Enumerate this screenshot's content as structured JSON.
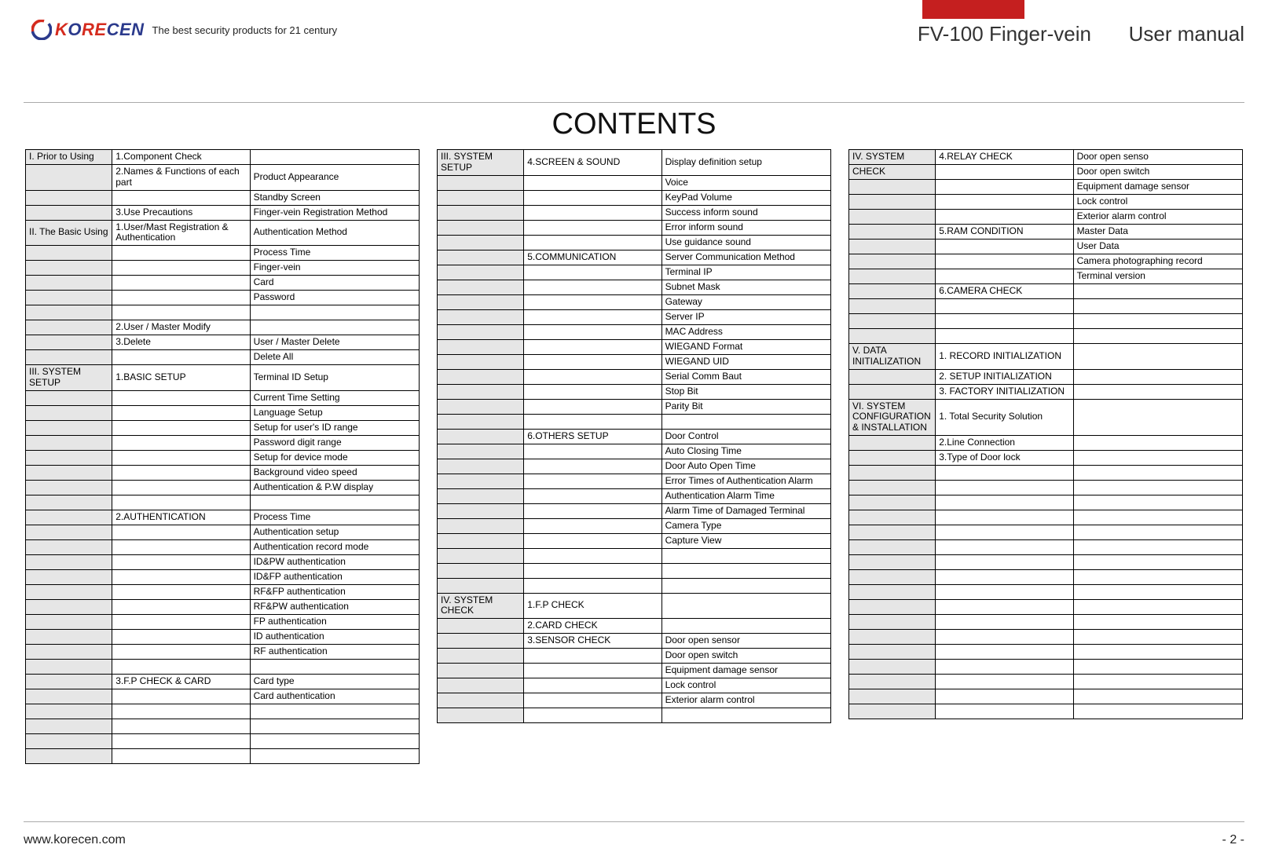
{
  "header": {
    "brand": "KORECEN",
    "tagline": "The best security products for 21 century",
    "product": "FV-100 Finger-vein",
    "doc_type": "User manual"
  },
  "title": "CONTENTS",
  "footer": {
    "url": "www.korecen.com",
    "page": "- 2 -"
  },
  "columns": [
    {
      "rows": [
        {
          "c1": "I. Prior to Using",
          "c1grey": true,
          "c2": "1.Component Check",
          "c3": ""
        },
        {
          "c1": "",
          "c1grey": true,
          "c2": "2.Names & Functions of each part",
          "c3": "Product Appearance"
        },
        {
          "c1": "",
          "c1grey": true,
          "c2": "",
          "c3": "Standby Screen"
        },
        {
          "c1": "",
          "c1grey": true,
          "c2": "3.Use Precautions",
          "c3": "Finger-vein Registration Method"
        },
        {
          "c1": "II. The Basic Using",
          "c1grey": true,
          "c2": "1.User/Mast Registration & Authentication",
          "c3": "Authentication Method"
        },
        {
          "c1": "",
          "c1grey": true,
          "c2": "",
          "c3": "Process Time"
        },
        {
          "c1": "",
          "c1grey": true,
          "c2": "",
          "c3": "Finger-vein"
        },
        {
          "c1": "",
          "c1grey": true,
          "c2": "",
          "c3": "Card"
        },
        {
          "c1": "",
          "c1grey": true,
          "c2": "",
          "c3": "Password"
        },
        {
          "c1": "",
          "c1grey": true,
          "c2": "",
          "c3": ""
        },
        {
          "c1": "",
          "c1grey": true,
          "c2": "2.User / Master Modify",
          "c3": ""
        },
        {
          "c1": "",
          "c1grey": true,
          "c2": "3.Delete",
          "c3": "User / Master Delete"
        },
        {
          "c1": "",
          "c1grey": true,
          "c2": "",
          "c3": "Delete All"
        },
        {
          "c1": "III. SYSTEM SETUP",
          "c1grey": true,
          "c2": "1.BASIC SETUP",
          "c3": "Terminal ID Setup"
        },
        {
          "c1": "",
          "c1grey": true,
          "c2": "",
          "c3": "Current Time Setting"
        },
        {
          "c1": "",
          "c1grey": true,
          "c2": "",
          "c3": "Language Setup"
        },
        {
          "c1": "",
          "c1grey": true,
          "c2": "",
          "c3": "Setup for user's ID range"
        },
        {
          "c1": "",
          "c1grey": true,
          "c2": "",
          "c3": "Password digit range"
        },
        {
          "c1": "",
          "c1grey": true,
          "c2": "",
          "c3": "Setup for device mode"
        },
        {
          "c1": "",
          "c1grey": true,
          "c2": "",
          "c3": "Background video speed"
        },
        {
          "c1": "",
          "c1grey": true,
          "c2": "",
          "c3": "Authentication & P.W display"
        },
        {
          "c1": "",
          "c1grey": true,
          "c2": "",
          "c3": ""
        },
        {
          "c1": "",
          "c1grey": true,
          "c2": "2.AUTHENTICATION",
          "c3": "Process Time"
        },
        {
          "c1": "",
          "c1grey": true,
          "c2": "",
          "c3": "Authentication setup"
        },
        {
          "c1": "",
          "c1grey": true,
          "c2": "",
          "c3": "Authentication record mode"
        },
        {
          "c1": "",
          "c1grey": true,
          "c2": "",
          "c3": "ID&PW authentication"
        },
        {
          "c1": "",
          "c1grey": true,
          "c2": "",
          "c3": "ID&FP authentication"
        },
        {
          "c1": "",
          "c1grey": true,
          "c2": "",
          "c3": "RF&FP authentication"
        },
        {
          "c1": "",
          "c1grey": true,
          "c2": "",
          "c3": "RF&PW authentication"
        },
        {
          "c1": "",
          "c1grey": true,
          "c2": "",
          "c3": "FP authentication"
        },
        {
          "c1": "",
          "c1grey": true,
          "c2": "",
          "c3": "ID authentication"
        },
        {
          "c1": "",
          "c1grey": true,
          "c2": "",
          "c3": "RF authentication"
        },
        {
          "c1": "",
          "c1grey": true,
          "c2": "",
          "c3": ""
        },
        {
          "c1": "",
          "c1grey": true,
          "c2": "3.F.P CHECK & CARD",
          "c3": "Card type"
        },
        {
          "c1": "",
          "c1grey": true,
          "c2": "",
          "c3": "Card authentication"
        },
        {
          "c1": "",
          "c1grey": true,
          "c2": "",
          "c3": ""
        },
        {
          "c1": "",
          "c1grey": true,
          "c2": "",
          "c3": ""
        },
        {
          "c1": "",
          "c1grey": true,
          "c2": "",
          "c3": ""
        },
        {
          "c1": "",
          "c1grey": true,
          "c2": "",
          "c3": ""
        }
      ]
    },
    {
      "rows": [
        {
          "c1": "III. SYSTEM SETUP",
          "c1grey": true,
          "c2": "4.SCREEN & SOUND",
          "c3": "Display definition setup"
        },
        {
          "c1": "",
          "c1grey": true,
          "c2": "",
          "c3": "Voice"
        },
        {
          "c1": "",
          "c1grey": true,
          "c2": "",
          "c3": "KeyPad Volume"
        },
        {
          "c1": "",
          "c1grey": true,
          "c2": "",
          "c3": "Success inform sound"
        },
        {
          "c1": "",
          "c1grey": true,
          "c2": "",
          "c3": "Error inform sound"
        },
        {
          "c1": "",
          "c1grey": true,
          "c2": "",
          "c3": "Use guidance sound"
        },
        {
          "c1": "",
          "c1grey": true,
          "c2": "5.COMMUNICATION",
          "c3": "Server Communication Method"
        },
        {
          "c1": "",
          "c1grey": true,
          "c2": "",
          "c3": "Terminal IP"
        },
        {
          "c1": "",
          "c1grey": true,
          "c2": "",
          "c3": "Subnet Mask"
        },
        {
          "c1": "",
          "c1grey": true,
          "c2": "",
          "c3": "Gateway"
        },
        {
          "c1": "",
          "c1grey": true,
          "c2": "",
          "c3": "Server IP"
        },
        {
          "c1": "",
          "c1grey": true,
          "c2": "",
          "c3": "MAC Address"
        },
        {
          "c1": "",
          "c1grey": true,
          "c2": "",
          "c3": "WIEGAND Format"
        },
        {
          "c1": "",
          "c1grey": true,
          "c2": "",
          "c3": "WIEGAND UID"
        },
        {
          "c1": "",
          "c1grey": true,
          "c2": "",
          "c3": "Serial Comm Baut"
        },
        {
          "c1": "",
          "c1grey": true,
          "c2": "",
          "c3": "Stop Bit"
        },
        {
          "c1": "",
          "c1grey": true,
          "c2": "",
          "c3": "Parity Bit"
        },
        {
          "c1": "",
          "c1grey": true,
          "c2": "",
          "c3": ""
        },
        {
          "c1": "",
          "c1grey": true,
          "c2": "6.OTHERS SETUP",
          "c3": "Door Control"
        },
        {
          "c1": "",
          "c1grey": true,
          "c2": "",
          "c3": "Auto Closing Time"
        },
        {
          "c1": "",
          "c1grey": true,
          "c2": "",
          "c3": "Door Auto Open Time"
        },
        {
          "c1": "",
          "c1grey": true,
          "c2": "",
          "c3": "Error Times of Authentication Alarm"
        },
        {
          "c1": "",
          "c1grey": true,
          "c2": "",
          "c3": "Authentication Alarm Time"
        },
        {
          "c1": "",
          "c1grey": true,
          "c2": "",
          "c3": "Alarm Time of Damaged Terminal"
        },
        {
          "c1": "",
          "c1grey": true,
          "c2": "",
          "c3": "Camera Type"
        },
        {
          "c1": "",
          "c1grey": true,
          "c2": "",
          "c3": "Capture View"
        },
        {
          "c1": "",
          "c1grey": true,
          "c2": "",
          "c3": ""
        },
        {
          "c1": "",
          "c1grey": true,
          "c2": "",
          "c3": ""
        },
        {
          "c1": "",
          "c1grey": true,
          "c2": "",
          "c3": ""
        },
        {
          "c1": "IV. SYSTEM CHECK",
          "c1grey": true,
          "c2": "1.F.P CHECK",
          "c3": ""
        },
        {
          "c1": "",
          "c1grey": true,
          "c2": "2.CARD CHECK",
          "c3": ""
        },
        {
          "c1": "",
          "c1grey": true,
          "c2": "3.SENSOR CHECK",
          "c3": "Door open sensor"
        },
        {
          "c1": "",
          "c1grey": true,
          "c2": "",
          "c3": "Door open switch"
        },
        {
          "c1": "",
          "c1grey": true,
          "c2": "",
          "c3": "Equipment damage sensor"
        },
        {
          "c1": "",
          "c1grey": true,
          "c2": "",
          "c3": "Lock control"
        },
        {
          "c1": "",
          "c1grey": true,
          "c2": "",
          "c3": "Exterior alarm control"
        },
        {
          "c1": "",
          "c1grey": true,
          "c2": "",
          "c3": ""
        }
      ]
    },
    {
      "rows": [
        {
          "c1": "IV. SYSTEM",
          "c1grey": true,
          "c2": "4.RELAY CHECK",
          "c3": "Door open senso"
        },
        {
          "c1": "CHECK",
          "c1grey": true,
          "c2": "",
          "c3": "Door open switch"
        },
        {
          "c1": "",
          "c1grey": true,
          "c2": "",
          "c3": "Equipment damage sensor"
        },
        {
          "c1": "",
          "c1grey": true,
          "c2": "",
          "c3": "Lock control"
        },
        {
          "c1": "",
          "c1grey": true,
          "c2": "",
          "c3": "Exterior alarm control"
        },
        {
          "c1": "",
          "c1grey": true,
          "c2": "5.RAM CONDITION",
          "c3": "Master Data"
        },
        {
          "c1": "",
          "c1grey": true,
          "c2": "",
          "c3": "User Data"
        },
        {
          "c1": "",
          "c1grey": true,
          "c2": "",
          "c3": "Camera photographing record"
        },
        {
          "c1": "",
          "c1grey": true,
          "c2": "",
          "c3": "Terminal version"
        },
        {
          "c1": "",
          "c1grey": true,
          "c2": "6.CAMERA CHECK",
          "c3": ""
        },
        {
          "c1": "",
          "c1grey": true,
          "c2": "",
          "c3": ""
        },
        {
          "c1": "",
          "c1grey": true,
          "c2": "",
          "c3": ""
        },
        {
          "c1": "",
          "c1grey": true,
          "c2": "",
          "c3": ""
        },
        {
          "c1": "V. DATA INITIALIZATION",
          "c1grey": true,
          "c2": "1. RECORD INITIALIZATION",
          "c3": ""
        },
        {
          "c1": "",
          "c1grey": true,
          "c2": "2. SETUP INITIALIZATION",
          "c3": ""
        },
        {
          "c1": "",
          "c1grey": true,
          "c2": "3. FACTORY INITIALIZATION",
          "c3": ""
        },
        {
          "c1": "VI. SYSTEM CONFIGURATION & INSTALLATION",
          "c1grey": true,
          "c2": "1. Total Security Solution",
          "c3": ""
        },
        {
          "c1": "",
          "c1grey": true,
          "c2": "2.Line Connection",
          "c3": ""
        },
        {
          "c1": "",
          "c1grey": true,
          "c2": "3.Type of Door lock",
          "c3": ""
        },
        {
          "c1": "",
          "c1grey": true,
          "c2": "",
          "c3": ""
        },
        {
          "c1": "",
          "c1grey": true,
          "c2": "",
          "c3": ""
        },
        {
          "c1": "",
          "c1grey": true,
          "c2": "",
          "c3": ""
        },
        {
          "c1": "",
          "c1grey": true,
          "c2": "",
          "c3": ""
        },
        {
          "c1": "",
          "c1grey": true,
          "c2": "",
          "c3": ""
        },
        {
          "c1": "",
          "c1grey": true,
          "c2": "",
          "c3": ""
        },
        {
          "c1": "",
          "c1grey": true,
          "c2": "",
          "c3": ""
        },
        {
          "c1": "",
          "c1grey": true,
          "c2": "",
          "c3": ""
        },
        {
          "c1": "",
          "c1grey": true,
          "c2": "",
          "c3": ""
        },
        {
          "c1": "",
          "c1grey": true,
          "c2": "",
          "c3": ""
        },
        {
          "c1": "",
          "c1grey": true,
          "c2": "",
          "c3": ""
        },
        {
          "c1": "",
          "c1grey": true,
          "c2": "",
          "c3": ""
        },
        {
          "c1": "",
          "c1grey": true,
          "c2": "",
          "c3": ""
        },
        {
          "c1": "",
          "c1grey": true,
          "c2": "",
          "c3": ""
        },
        {
          "c1": "",
          "c1grey": true,
          "c2": "",
          "c3": ""
        },
        {
          "c1": "",
          "c1grey": true,
          "c2": "",
          "c3": ""
        },
        {
          "c1": "",
          "c1grey": true,
          "c2": "",
          "c3": ""
        }
      ]
    }
  ]
}
